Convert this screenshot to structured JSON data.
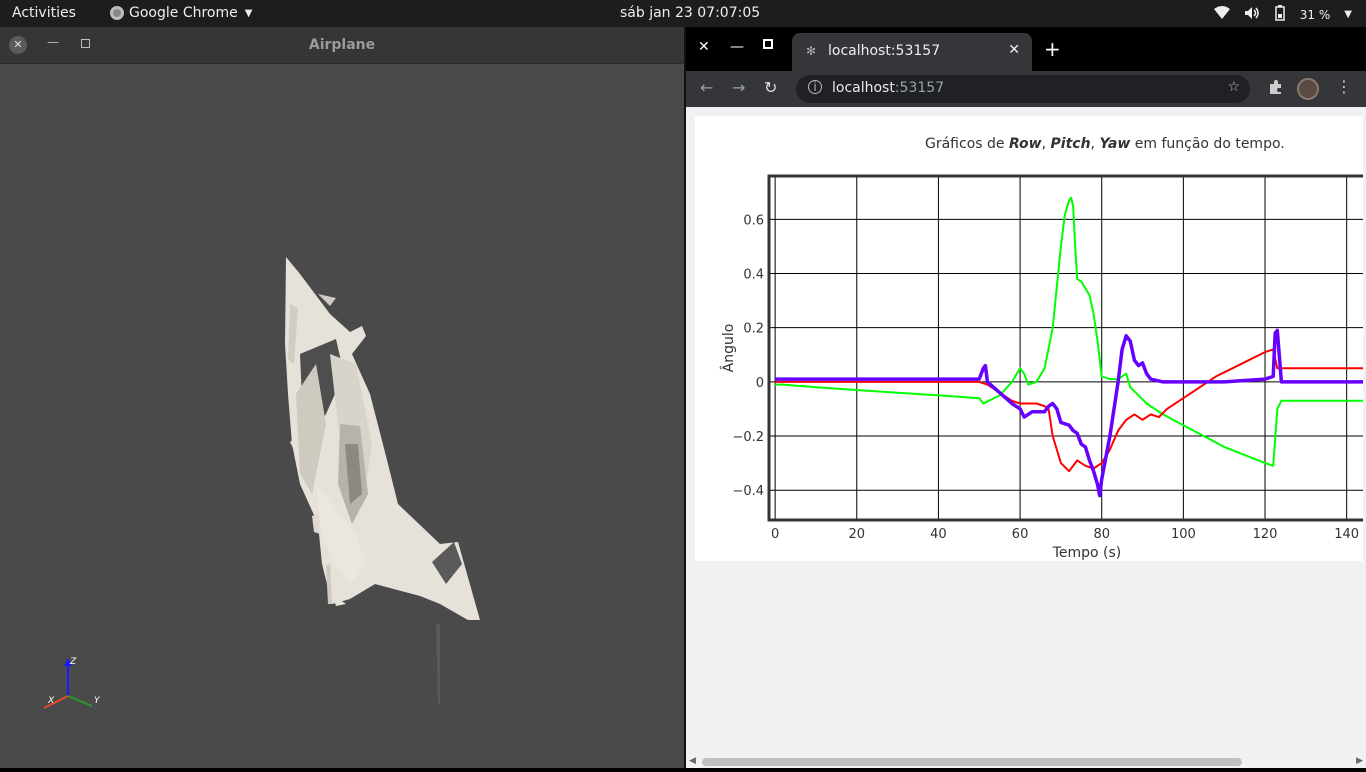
{
  "topbar": {
    "activities": "Activities",
    "app_name": "Google Chrome",
    "clock": "sáb jan 23  07:07:05",
    "battery": "31 %"
  },
  "left_window": {
    "title": "Airplane",
    "axes_labels": {
      "z": "Z",
      "x": "X",
      "y": "Y"
    }
  },
  "browser": {
    "tab_title": "localhost:53157",
    "url_host": "localhost",
    "url_port": ":53157"
  },
  "chart_data": {
    "type": "line",
    "title_parts": [
      "Gráficos de ",
      "Row",
      ", ",
      "Pitch",
      ", ",
      "Yaw",
      " em função do tempo."
    ],
    "xlabel": "Tempo (s)",
    "ylabel": "Ângulo",
    "xlim": [
      -1.5,
      144
    ],
    "ylim": [
      -0.51,
      0.76
    ],
    "xticks": [
      0,
      20,
      40,
      60,
      80,
      100,
      120,
      140
    ],
    "yticks": [
      -0.4,
      -0.2,
      0,
      0.2,
      0.4,
      0.6
    ],
    "ytick_labels": [
      "−0.4",
      "−0.2",
      "0",
      "0.2",
      "0.4",
      "0.6"
    ],
    "grid": true,
    "series": [
      {
        "color": "#00ff00",
        "x": [
          0,
          2,
          10,
          20,
          30,
          40,
          50,
          51,
          55,
          58,
          60,
          61,
          62,
          64,
          66,
          68,
          69,
          70,
          71,
          72,
          72.5,
          73,
          73.5,
          74,
          75,
          77,
          78,
          79,
          80,
          82,
          84,
          86,
          87,
          89,
          91,
          95,
          100,
          110,
          120,
          122,
          123,
          124,
          130,
          140,
          144
        ],
        "y": [
          -0.01,
          -0.01,
          -0.02,
          -0.03,
          -0.04,
          -0.05,
          -0.06,
          -0.08,
          -0.05,
          0.0,
          0.05,
          0.03,
          -0.01,
          0.0,
          0.05,
          0.2,
          0.35,
          0.5,
          0.62,
          0.67,
          0.68,
          0.65,
          0.5,
          0.38,
          0.37,
          0.32,
          0.25,
          0.15,
          0.02,
          0.01,
          0.01,
          0.03,
          -0.02,
          -0.05,
          -0.08,
          -0.12,
          -0.16,
          -0.24,
          -0.3,
          -0.31,
          -0.1,
          -0.07,
          -0.07,
          -0.07,
          -0.07
        ]
      },
      {
        "color": "#ff0000",
        "x": [
          0,
          10,
          20,
          30,
          40,
          50,
          52,
          55,
          58,
          60,
          62,
          64,
          66,
          67,
          68,
          70,
          72,
          74,
          76,
          78,
          80,
          82,
          84,
          86,
          88,
          90,
          92,
          94,
          96,
          100,
          104,
          108,
          112,
          116,
          120,
          122,
          123,
          130,
          140,
          144
        ],
        "y": [
          0.0,
          0.0,
          0.0,
          0.0,
          0.0,
          0.0,
          -0.01,
          -0.04,
          -0.07,
          -0.08,
          -0.08,
          -0.08,
          -0.09,
          -0.1,
          -0.2,
          -0.3,
          -0.33,
          -0.29,
          -0.31,
          -0.32,
          -0.3,
          -0.25,
          -0.18,
          -0.14,
          -0.12,
          -0.14,
          -0.12,
          -0.13,
          -0.1,
          -0.06,
          -0.02,
          0.02,
          0.05,
          0.08,
          0.11,
          0.12,
          0.05,
          0.05,
          0.05,
          0.05
        ]
      },
      {
        "color": "#6600ff",
        "x": [
          0,
          10,
          20,
          30,
          40,
          50,
          51,
          51.5,
          52,
          55,
          58,
          60,
          61,
          62,
          63,
          64,
          65,
          66,
          67,
          68,
          69,
          70,
          72,
          73,
          74,
          75,
          76,
          77,
          78,
          79,
          79.5,
          80,
          82,
          84,
          85,
          86,
          87,
          88,
          89,
          90,
          91,
          92,
          95,
          100,
          110,
          120,
          122,
          122.5,
          123,
          124,
          130,
          140,
          144
        ],
        "y": [
          0.01,
          0.01,
          0.01,
          0.01,
          0.01,
          0.01,
          0.05,
          0.06,
          0.0,
          -0.04,
          -0.08,
          -0.1,
          -0.13,
          -0.12,
          -0.11,
          -0.11,
          -0.11,
          -0.11,
          -0.09,
          -0.08,
          -0.1,
          -0.15,
          -0.16,
          -0.18,
          -0.19,
          -0.23,
          -0.24,
          -0.29,
          -0.33,
          -0.38,
          -0.42,
          -0.36,
          -0.2,
          0.0,
          0.12,
          0.17,
          0.15,
          0.08,
          0.06,
          0.07,
          0.03,
          0.01,
          0.0,
          0.0,
          0.0,
          0.01,
          0.02,
          0.18,
          0.19,
          0.0,
          0.0,
          0.0,
          0.0
        ]
      }
    ]
  }
}
